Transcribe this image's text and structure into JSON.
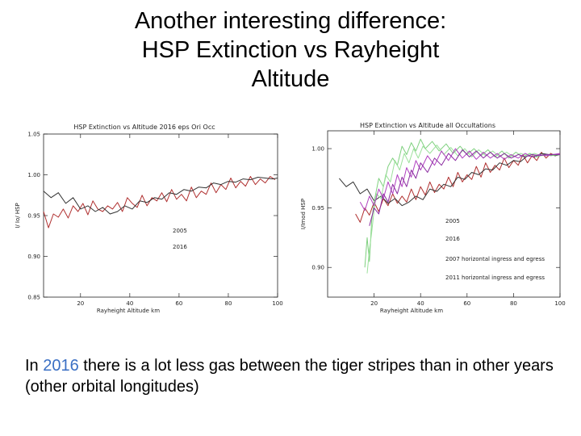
{
  "slide": {
    "title_lines": [
      "Another interesting difference:",
      "HSP Extinction vs Rayheight",
      "Altitude"
    ],
    "caption": {
      "pre": "In ",
      "highlight": "2016",
      "post": " there is a lot less gas between the tiger stripes than in other years (other orbital longitudes)",
      "highlight_color": "#3a6fc4"
    }
  },
  "chart_data": [
    {
      "type": "line",
      "title": "HSP Extinction vs Altitude 2016 eps Ori Occ",
      "xlabel": "Rayheight Altitude km",
      "ylabel": "I/ Io/ HSP",
      "xlim": [
        5,
        100
      ],
      "ylim": [
        0.85,
        1.05
      ],
      "xticks": [
        20,
        40,
        60,
        80,
        100
      ],
      "yticks": [
        0.85,
        0.9,
        0.95,
        1.0,
        1.05
      ],
      "ytick_labels": [
        "0.85",
        "0.90",
        "0.95",
        "1.00",
        "1.05"
      ],
      "grid": false,
      "legend": [
        {
          "label": "2005",
          "color": "#b03030"
        },
        {
          "label": "2016",
          "color": "#555555"
        }
      ],
      "series": [
        {
          "name": "2005",
          "color": "#b03030",
          "x": [
            5,
            7,
            9,
            11,
            13,
            15,
            17,
            19,
            21,
            23,
            25,
            27,
            29,
            31,
            33,
            35,
            37,
            39,
            41,
            43,
            45,
            47,
            49,
            51,
            53,
            55,
            57,
            59,
            61,
            63,
            65,
            67,
            69,
            71,
            73,
            75,
            77,
            79,
            81,
            83,
            85,
            87,
            89,
            91,
            93,
            95,
            97,
            99
          ],
          "y": [
            0.955,
            0.935,
            0.952,
            0.948,
            0.958,
            0.947,
            0.962,
            0.955,
            0.965,
            0.951,
            0.968,
            0.958,
            0.955,
            0.962,
            0.958,
            0.966,
            0.955,
            0.972,
            0.965,
            0.96,
            0.975,
            0.962,
            0.972,
            0.968,
            0.978,
            0.967,
            0.982,
            0.97,
            0.976,
            0.968,
            0.985,
            0.972,
            0.98,
            0.976,
            0.99,
            0.978,
            0.988,
            0.982,
            0.996,
            0.984,
            0.992,
            0.986,
            0.998,
            0.988,
            0.995,
            0.99,
            0.998,
            0.994
          ]
        },
        {
          "name": "2016",
          "color": "#333333",
          "x": [
            5,
            8,
            11,
            14,
            17,
            20,
            23,
            26,
            29,
            32,
            35,
            38,
            41,
            44,
            47,
            50,
            53,
            56,
            59,
            62,
            65,
            68,
            71,
            74,
            77,
            80,
            83,
            86,
            89,
            92,
            95,
            98,
            100
          ],
          "y": [
            0.98,
            0.972,
            0.978,
            0.965,
            0.972,
            0.958,
            0.962,
            0.955,
            0.96,
            0.952,
            0.955,
            0.962,
            0.958,
            0.968,
            0.966,
            0.972,
            0.97,
            0.978,
            0.976,
            0.982,
            0.98,
            0.985,
            0.984,
            0.99,
            0.988,
            0.992,
            0.991,
            0.995,
            0.994,
            0.997,
            0.996,
            0.995,
            0.996
          ]
        }
      ]
    },
    {
      "type": "line",
      "title": "HSP Extinction vs Altitude all Occultations",
      "xlabel": "Rayheight Altitude km",
      "ylabel": "I/Imod HSP",
      "xlim": [
        0,
        100
      ],
      "ylim": [
        0.875,
        1.015
      ],
      "xticks": [
        20,
        40,
        60,
        80,
        100
      ],
      "yticks": [
        0.9,
        0.95,
        1.0
      ],
      "ytick_labels": [
        "0.90",
        "0.95",
        "1.00"
      ],
      "grid": false,
      "legend": [
        {
          "label": "2005",
          "color": "#b03030"
        },
        {
          "label": "2016",
          "color": "#555555"
        },
        {
          "label": "2007 horizontal ingress and egress",
          "color": "#7fd07f"
        },
        {
          "label": "2011 horizontal ingress and egress",
          "color": "#b040c0"
        }
      ],
      "series": [
        {
          "name": "2005",
          "color": "#b03030",
          "x": [
            12,
            14,
            16,
            18,
            20,
            22,
            24,
            26,
            28,
            30,
            32,
            34,
            36,
            38,
            40,
            42,
            44,
            46,
            48,
            50,
            52,
            54,
            56,
            58,
            60,
            62,
            64,
            66,
            68,
            70,
            72,
            74,
            76,
            78,
            80,
            82,
            84,
            86,
            88,
            90,
            92,
            94,
            96,
            98,
            100
          ],
          "y": [
            0.945,
            0.938,
            0.95,
            0.944,
            0.955,
            0.947,
            0.958,
            0.952,
            0.962,
            0.954,
            0.96,
            0.955,
            0.966,
            0.957,
            0.968,
            0.961,
            0.972,
            0.963,
            0.97,
            0.966,
            0.976,
            0.968,
            0.98,
            0.972,
            0.978,
            0.974,
            0.985,
            0.976,
            0.988,
            0.98,
            0.986,
            0.982,
            0.992,
            0.984,
            0.99,
            0.986,
            0.995,
            0.988,
            0.994,
            0.99,
            0.997,
            0.992,
            0.996,
            0.994,
            0.996
          ]
        },
        {
          "name": "2016",
          "color": "#333333",
          "x": [
            5,
            8,
            11,
            14,
            17,
            20,
            23,
            26,
            29,
            32,
            35,
            38,
            41,
            44,
            47,
            50,
            53,
            56,
            59,
            62,
            65,
            68,
            71,
            74,
            77,
            80,
            83,
            86,
            89,
            92,
            95,
            98,
            100
          ],
          "y": [
            0.975,
            0.968,
            0.972,
            0.962,
            0.966,
            0.956,
            0.96,
            0.954,
            0.958,
            0.952,
            0.955,
            0.96,
            0.957,
            0.966,
            0.964,
            0.97,
            0.968,
            0.976,
            0.974,
            0.98,
            0.978,
            0.983,
            0.982,
            0.988,
            0.986,
            0.99,
            0.989,
            0.994,
            0.993,
            0.996,
            0.995,
            0.994,
            0.995
          ]
        },
        {
          "name": "2007 horizontal ingress and egress",
          "color": "#7fd07f",
          "x": [
            16,
            17,
            18,
            19,
            20,
            22,
            24,
            26,
            28,
            30,
            32,
            34,
            36,
            38,
            40,
            42,
            45,
            48,
            51,
            54,
            57,
            60,
            63,
            66,
            69,
            72,
            75,
            78,
            81,
            84,
            87,
            90,
            93,
            96,
            100
          ],
          "y": [
            0.9,
            0.925,
            0.905,
            0.94,
            0.955,
            0.975,
            0.968,
            0.985,
            0.992,
            0.986,
            1.002,
            0.995,
            1.005,
            0.998,
            1.008,
            1.0,
            1.006,
            0.998,
            1.004,
            0.996,
            1.002,
            0.995,
            1.0,
            0.994,
            0.999,
            0.993,
            0.998,
            0.992,
            0.997,
            0.993,
            0.996,
            0.993,
            0.995,
            0.994,
            0.995
          ]
        },
        {
          "name": "2007 horizontal ingress and egress (b)",
          "color": "#9be09b",
          "x": [
            17,
            18,
            19,
            20,
            21,
            23,
            25,
            27,
            29,
            31,
            33,
            35,
            37,
            39,
            41,
            44,
            47,
            50,
            53,
            56,
            59,
            62,
            65,
            68,
            71,
            74,
            77,
            80,
            83,
            86,
            89,
            92,
            95,
            98,
            100
          ],
          "y": [
            0.895,
            0.915,
            0.93,
            0.948,
            0.962,
            0.958,
            0.978,
            0.972,
            0.99,
            0.982,
            0.996,
            0.988,
            1.0,
            0.992,
            1.002,
            0.996,
            1.003,
            0.995,
            1.001,
            0.994,
            1.0,
            0.993,
            0.999,
            0.994,
            0.998,
            0.993,
            0.997,
            0.993,
            0.996,
            0.994,
            0.996,
            0.994,
            0.995,
            0.995,
            0.995
          ]
        },
        {
          "name": "2011 horizontal ingress and egress",
          "color": "#b040c0",
          "x": [
            14,
            16,
            18,
            20,
            22,
            24,
            26,
            28,
            30,
            32,
            34,
            36,
            38,
            40,
            43,
            46,
            49,
            52,
            55,
            58,
            61,
            64,
            67,
            70,
            73,
            76,
            79,
            82,
            85,
            88,
            91,
            94,
            97,
            100
          ],
          "y": [
            0.955,
            0.948,
            0.96,
            0.952,
            0.966,
            0.958,
            0.972,
            0.962,
            0.978,
            0.968,
            0.984,
            0.976,
            0.99,
            0.982,
            0.994,
            0.986,
            0.998,
            0.99,
            1.0,
            0.992,
            0.998,
            0.991,
            0.997,
            0.992,
            0.996,
            0.991,
            0.995,
            0.992,
            0.996,
            0.993,
            0.995,
            0.994,
            0.995,
            0.996
          ]
        },
        {
          "name": "2011 horizontal ingress and egress (b)",
          "color": "#8a2aa0",
          "x": [
            18,
            20,
            22,
            24,
            26,
            28,
            30,
            32,
            34,
            36,
            38,
            40,
            43,
            46,
            49,
            52,
            55,
            58,
            61,
            64,
            67,
            70,
            73,
            76,
            79,
            82,
            85,
            88,
            91,
            94,
            97,
            100
          ],
          "y": [
            0.935,
            0.95,
            0.945,
            0.962,
            0.955,
            0.97,
            0.962,
            0.976,
            0.968,
            0.982,
            0.975,
            0.988,
            0.98,
            0.992,
            0.986,
            0.996,
            0.99,
            0.999,
            0.993,
            0.998,
            0.992,
            0.997,
            0.992,
            0.996,
            0.992,
            0.995,
            0.993,
            0.995,
            0.994,
            0.995,
            0.995,
            0.995
          ]
        }
      ]
    }
  ]
}
